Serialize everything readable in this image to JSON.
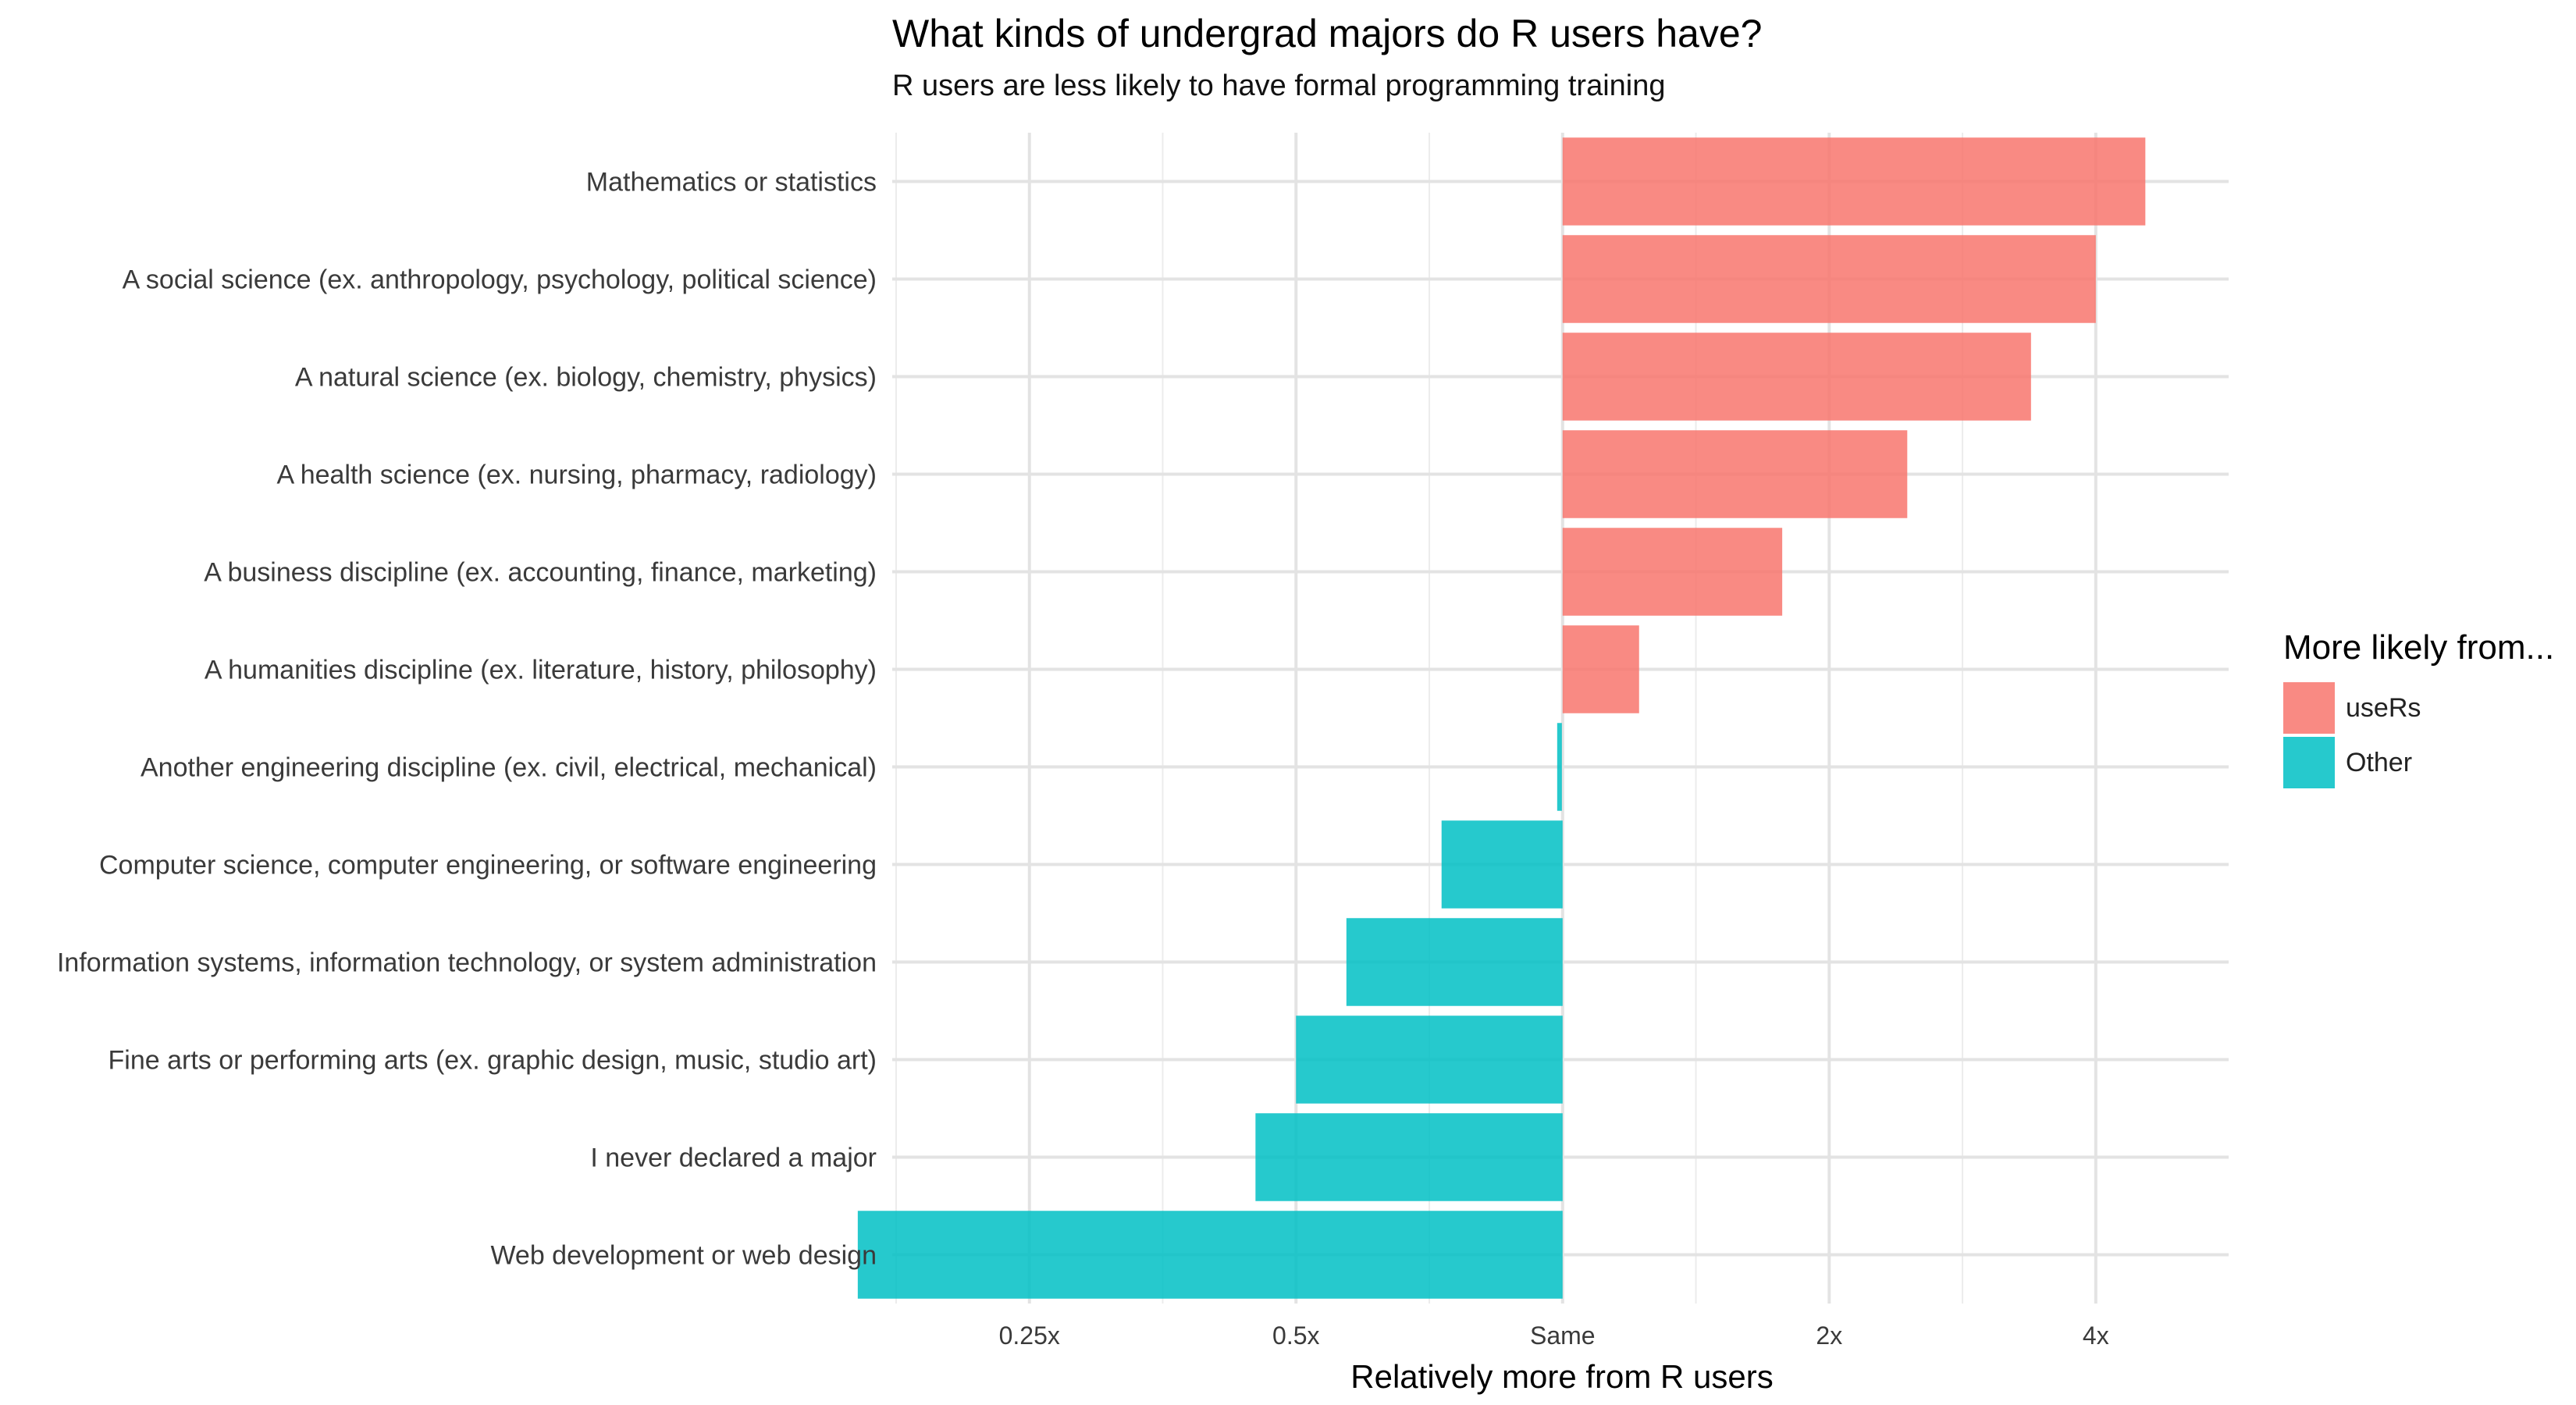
{
  "chart_data": {
    "type": "bar",
    "orientation": "horizontal",
    "title": "What kinds of undergrad majors do R users have?",
    "subtitle": "R users are less likely to have formal programming training",
    "xlabel": "Relatively more from R users",
    "ylabel": "",
    "x_scale": "log2",
    "xlim": [
      0.175,
      5.65
    ],
    "x_ticks": [
      {
        "value": 0.25,
        "label": "0.25x"
      },
      {
        "value": 0.5,
        "label": "0.5x"
      },
      {
        "value": 1,
        "label": "Same"
      },
      {
        "value": 2,
        "label": "2x"
      },
      {
        "value": 4,
        "label": "4x"
      }
    ],
    "baseline": 1,
    "categories": [
      "Mathematics or statistics",
      "A social science (ex. anthropology, psychology, political science)",
      "A natural science (ex. biology, chemistry, physics)",
      "A health science (ex. nursing, pharmacy, radiology)",
      "A business discipline (ex. accounting, finance, marketing)",
      "A humanities discipline (ex. literature, history, philosophy)",
      "Another engineering discipline (ex. civil, electrical, mechanical)",
      "Computer science, computer engineering, or software engineering",
      "Information systems, information technology, or system administration",
      "Fine arts or performing arts (ex. graphic design, music, studio art)",
      "I never declared a major",
      "Web development or web design"
    ],
    "values": [
      4.55,
      4.0,
      3.38,
      2.45,
      1.77,
      1.22,
      0.99,
      0.73,
      0.57,
      0.5,
      0.45,
      0.16
    ],
    "groups": [
      "useRs",
      "useRs",
      "useRs",
      "useRs",
      "useRs",
      "useRs",
      "Other",
      "Other",
      "Other",
      "Other",
      "Other",
      "Other"
    ],
    "grid": true,
    "legend": {
      "title": "More likely from...",
      "position": "right",
      "entries": [
        {
          "name": "useRs",
          "color": "#F8766D"
        },
        {
          "name": "Other",
          "color": "#00BFC4"
        }
      ]
    }
  }
}
